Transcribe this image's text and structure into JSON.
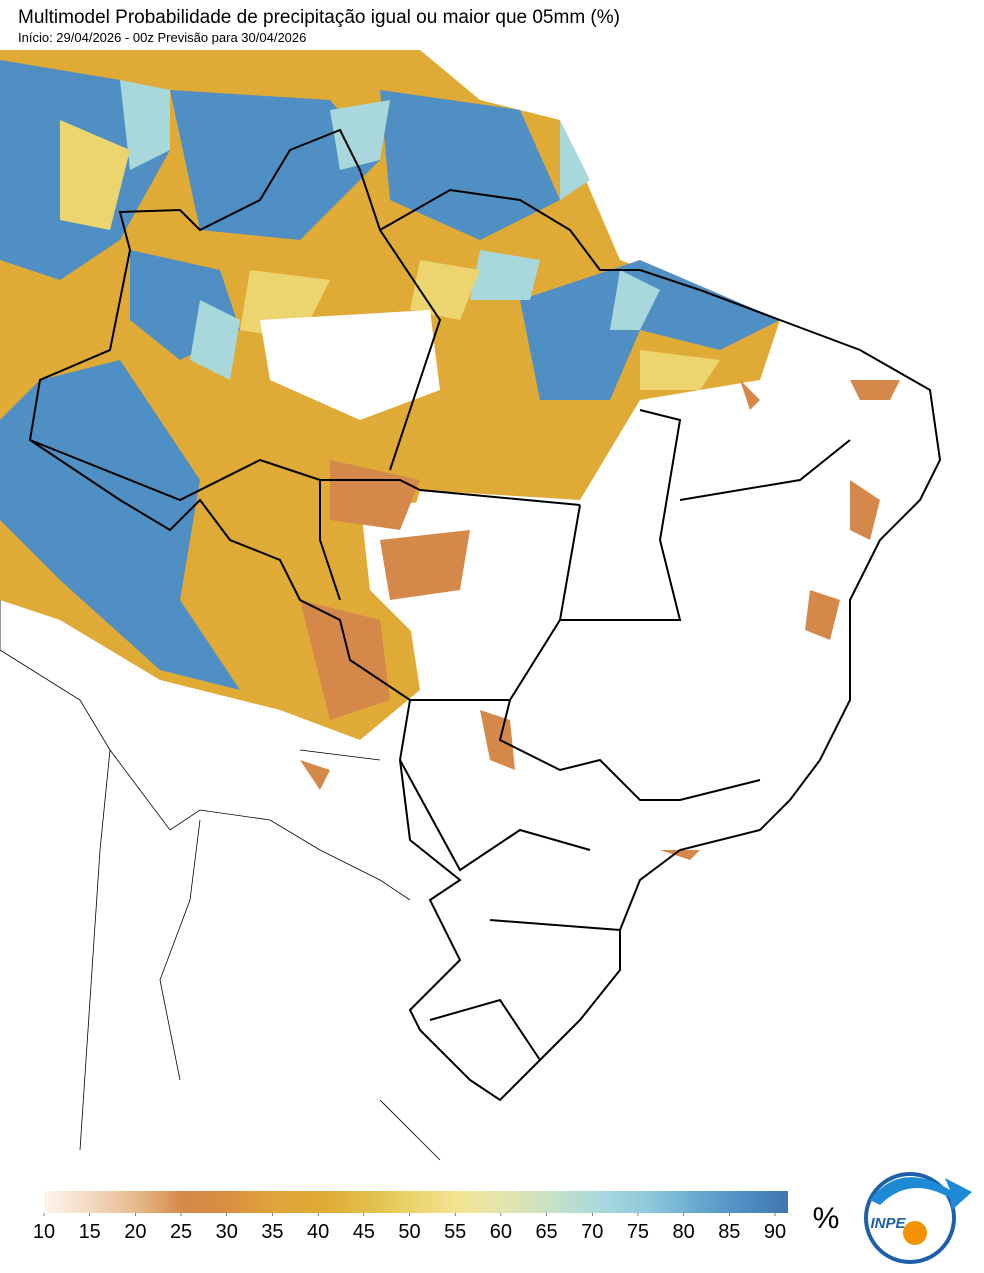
{
  "header": {
    "title": "Multimodel Probabilidade de precipitação igual ou maior que 05mm (%)",
    "subtitle": "Início: 29/04/2026 - 00z  Previsão para 30/04/2026"
  },
  "colorbar": {
    "unit": "%",
    "ticks": [
      10,
      15,
      20,
      25,
      30,
      35,
      40,
      45,
      50,
      55,
      60,
      65,
      70,
      75,
      80,
      85,
      90
    ],
    "colors": [
      "#fdf6ee",
      "#f2d9c0",
      "#e6b98a",
      "#d4894a",
      "#d9903f",
      "#e0a43a",
      "#dfaa35",
      "#e2c04a",
      "#ecd56e",
      "#f2e596",
      "#e0e5b0",
      "#c5e0c8",
      "#a8d8dc",
      "#8ec9db",
      "#6aaad0",
      "#4f8fc3",
      "#3f77b0"
    ]
  },
  "logo": {
    "text": "INPE"
  }
}
